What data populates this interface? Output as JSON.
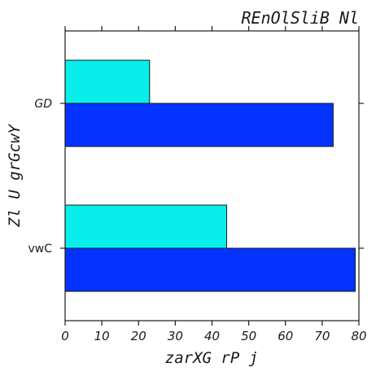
{
  "chart_data": {
    "type": "bar",
    "orientation": "horizontal",
    "title": "REnOlSliB Nl",
    "xlabel": "zarXG rP j",
    "ylabel": "Zl U grGcwY",
    "categories": [
      "vwC",
      "GD"
    ],
    "series": [
      {
        "color": "#0433ff",
        "values": [
          79,
          73
        ]
      },
      {
        "color": "#08efeb",
        "values": [
          44,
          23
        ]
      }
    ],
    "xlim": [
      0,
      80
    ],
    "xticks": [
      "0",
      "10",
      "20",
      "30",
      "40",
      "50",
      "60",
      "70",
      "80"
    ],
    "grid": false,
    "legend": "none"
  }
}
